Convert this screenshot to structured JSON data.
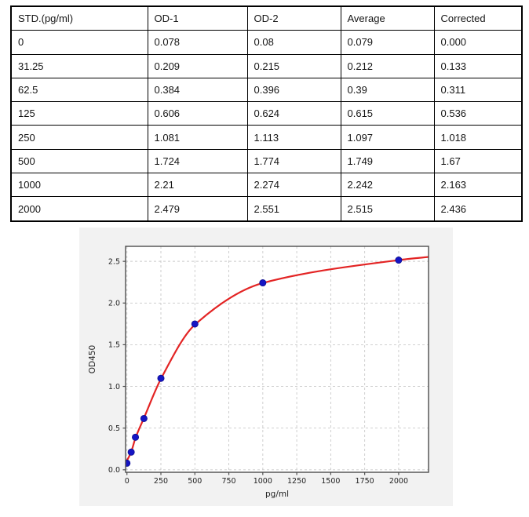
{
  "table": {
    "columns": [
      "STD.(pg/ml)",
      "OD-1",
      "OD-2",
      "Average",
      "Corrected"
    ],
    "rows": [
      [
        "0",
        "0.078",
        "0.08",
        "0.079",
        "0.000"
      ],
      [
        "31.25",
        "0.209",
        "0.215",
        "0.212",
        "0.133"
      ],
      [
        "62.5",
        "0.384",
        "0.396",
        "0.39",
        "0.311"
      ],
      [
        "125",
        "0.606",
        "0.624",
        "0.615",
        "0.536"
      ],
      [
        "250",
        "1.081",
        "1.113",
        "1.097",
        "1.018"
      ],
      [
        "500",
        "1.724",
        "1.774",
        "1.749",
        "1.67"
      ],
      [
        "1000",
        "2.21",
        "2.274",
        "2.242",
        "2.163"
      ],
      [
        "2000",
        "2.479",
        "2.551",
        "2.515",
        "2.436"
      ]
    ]
  },
  "chart_data": {
    "type": "scatter",
    "title": "",
    "xlabel": "pg/ml",
    "ylabel": "OD450",
    "points": {
      "x": [
        0,
        31.25,
        62.5,
        125,
        250,
        500,
        1000,
        2000
      ],
      "y": [
        0.079,
        0.212,
        0.39,
        0.615,
        1.097,
        1.749,
        2.242,
        2.515
      ]
    },
    "fit_curve": {
      "name": "fitted standard curve",
      "x": [
        -10,
        0,
        31.25,
        62.5,
        125,
        250,
        500,
        1000,
        2000,
        2220
      ],
      "y": [
        0.1,
        0.115,
        0.215,
        0.38,
        0.62,
        1.09,
        1.74,
        2.24,
        2.515,
        2.553
      ]
    },
    "x_ticks": [
      0,
      250,
      500,
      750,
      1000,
      1250,
      1500,
      1750,
      2000
    ],
    "y_ticks": [
      0.0,
      0.5,
      1.0,
      1.5,
      2.0,
      2.5
    ],
    "xlim": [
      -10,
      2220
    ],
    "ylim": [
      -0.03,
      2.68
    ],
    "grid": true,
    "grid_style": "dashed",
    "legend": "none",
    "colors": {
      "figure_bg": "#f2f2f2",
      "plot_bg": "#ffffff",
      "grid": "#c9c9c9",
      "spine": "#4d4d4d",
      "text": "#1f1f1f",
      "point_fill": "#1515c4",
      "point_edge": "#0d0d8f",
      "curve": "#e32424"
    }
  }
}
